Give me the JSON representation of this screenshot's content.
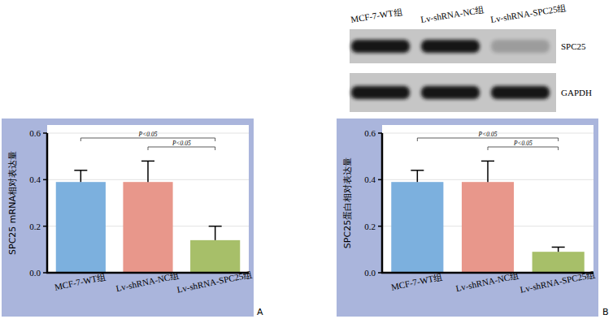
{
  "chart_data": [
    {
      "type": "bar",
      "panel_label": "A",
      "ylabel": "SPC25 mRNA相对表达量",
      "categories": [
        "MCF-7-WT组",
        "Lv-shRNA-NC组",
        "Lv-shRNA-SPC25组"
      ],
      "values": [
        0.39,
        0.39,
        0.14
      ],
      "errors": [
        0.05,
        0.09,
        0.06
      ],
      "colors": [
        "#7cb0de",
        "#e8978b",
        "#a7bf69"
      ],
      "ylim": [
        0,
        0.6
      ],
      "yticks": [
        {
          "value": 0,
          "label": "0.0"
        },
        0.2,
        0.4,
        0.6
      ],
      "grid": true,
      "annotations": [
        {
          "from": 0,
          "to": 2,
          "label": "P<0.05"
        },
        {
          "from": 1,
          "to": 2,
          "label": "P<0.05"
        }
      ]
    },
    {
      "type": "bar",
      "panel_label": "B",
      "ylabel": "SPC25蛋白相对表达量",
      "categories": [
        "MCF-7-WT组",
        "Lv-shRNA-NC组",
        "Lv-shRNA-SPC25组"
      ],
      "values": [
        0.39,
        0.39,
        0.09
      ],
      "errors": [
        0.05,
        0.09,
        0.02
      ],
      "colors": [
        "#7cb0de",
        "#e8978b",
        "#a7bf69"
      ],
      "ylim": [
        0,
        0.6
      ],
      "yticks": [
        {
          "value": 0,
          "label": "0.0"
        },
        0.2,
        0.4,
        0.6
      ],
      "grid": true,
      "annotations": [
        {
          "from": 0,
          "to": 2,
          "label": "P<0.05"
        },
        {
          "from": 1,
          "to": 2,
          "label": "P<0.05"
        }
      ]
    }
  ],
  "blot": {
    "lanes": [
      "MCF-7-WT组",
      "Lv-shRNA-NC组",
      "Lv-shRNA-SPC25组"
    ],
    "bands": [
      "SPC25",
      "GAPDH"
    ]
  }
}
